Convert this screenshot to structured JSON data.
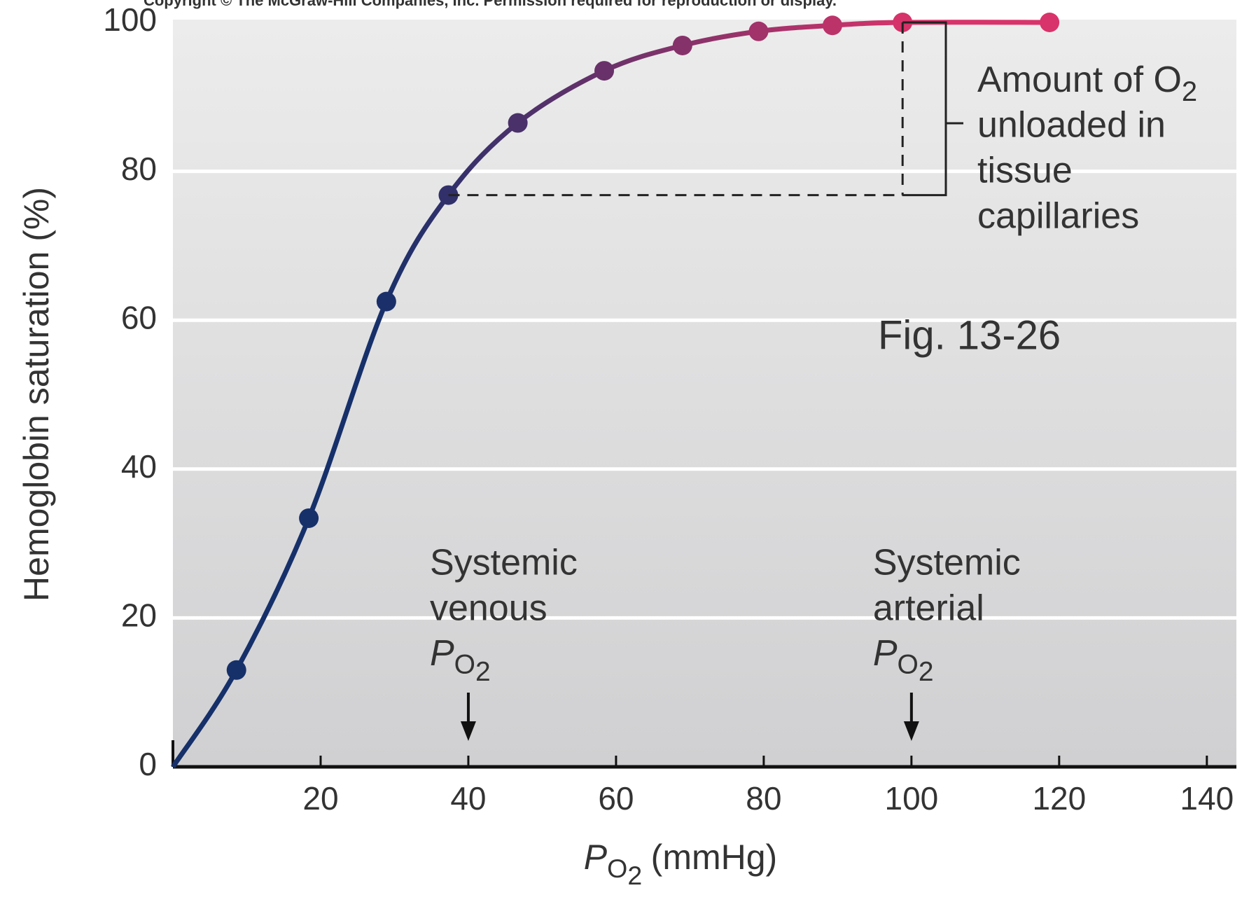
{
  "header": {
    "copyright": "Copyright © The McGraw-Hill Companies, Inc. Permission required for reproduction or display."
  },
  "chart_data": {
    "type": "line",
    "y_label": "Hemoglobin saturation (%)",
    "x_label": {
      "italic": "P",
      "sub": "O",
      "subsub": "2",
      "rest": "(mmHg)"
    },
    "x": [
      8.6,
      18.4,
      28.9,
      37.3,
      46.7,
      58.4,
      69,
      79.3,
      89.3,
      98.8,
      118.7
    ],
    "series": [
      {
        "values": [
          13,
          33.4,
          62.5,
          76.8,
          86.5,
          93.5,
          96.9,
          98.8,
          99.6,
          100,
          100
        ],
        "colors": [
          "#16306a",
          "#d8336a"
        ]
      }
    ],
    "xlim": [
      0,
      144
    ],
    "xticks": [
      20,
      40,
      60,
      80,
      100,
      120,
      140
    ],
    "ylim": [
      0,
      100
    ],
    "yticks": [
      0,
      20,
      40,
      60,
      80,
      100
    ],
    "grid": true,
    "annotations": {
      "unloaded": {
        "lines": [
          "Amount of O",
          "unloaded in",
          "tissue",
          "capillaries"
        ],
        "sub": "2"
      },
      "figure": "Fig. 13-26",
      "venous": {
        "lines": [
          "Systemic",
          "venous"
        ],
        "italic": "P",
        "sub": "O",
        "subsub": "2",
        "x": 40
      },
      "arterial": {
        "lines": [
          "Systemic",
          "arterial"
        ],
        "italic": "P",
        "sub": "O",
        "subsub": "2",
        "x": 100
      }
    }
  }
}
